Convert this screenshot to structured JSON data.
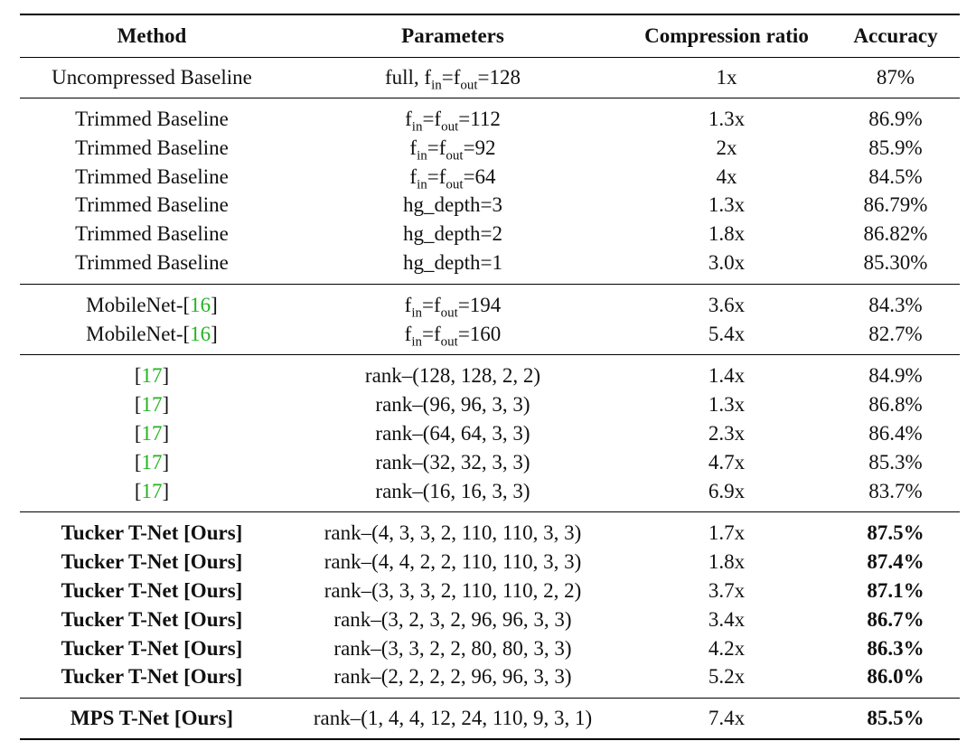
{
  "headers": {
    "method": "Method",
    "parameters": "Parameters",
    "compression": "Compression ratio",
    "accuracy": "Accuracy"
  },
  "uncompressed": {
    "method": "Uncompressed Baseline",
    "param_prefix": "full, f",
    "sub_in": "in",
    "eq": "=f",
    "sub_out": "out",
    "value": "=128",
    "ratio": "1x",
    "accuracy": "87%"
  },
  "trimmed": [
    {
      "method": "Trimmed Baseline",
      "params": "=112",
      "ratio": "1.3x",
      "accuracy": "86.9%"
    },
    {
      "method": "Trimmed Baseline",
      "params": "=92",
      "ratio": "2x",
      "accuracy": "85.9%"
    },
    {
      "method": "Trimmed Baseline",
      "params": "=64",
      "ratio": "4x",
      "accuracy": "84.5%"
    },
    {
      "method": "Trimmed Baseline",
      "params": "hg_depth=3",
      "ratio": "1.3x",
      "accuracy": "86.79%"
    },
    {
      "method": "Trimmed Baseline",
      "params": "hg_depth=2",
      "ratio": "1.8x",
      "accuracy": "86.82%"
    },
    {
      "method": "Trimmed Baseline",
      "params": "hg_depth=1",
      "ratio": "3.0x",
      "accuracy": "85.30%"
    }
  ],
  "f_sym": "f",
  "sub_in": "in",
  "eq_f": "=f",
  "sub_out": "out",
  "mobilenet": [
    {
      "method": "MobileNet-[",
      "cite": "16",
      "close": "]",
      "params": "=194",
      "ratio": "3.6x",
      "accuracy": "84.3%"
    },
    {
      "method": "MobileNet-[",
      "cite": "16",
      "close": "]",
      "params": "=160",
      "ratio": "5.4x",
      "accuracy": "82.7%"
    }
  ],
  "ref17": [
    {
      "open": "[",
      "cite": "17",
      "close": "]",
      "params": "rank–(128, 128, 2, 2)",
      "ratio": "1.4x",
      "accuracy": "84.9%"
    },
    {
      "open": "[",
      "cite": "17",
      "close": "]",
      "params": "rank–(96, 96, 3, 3)",
      "ratio": "1.3x",
      "accuracy": "86.8%"
    },
    {
      "open": "[",
      "cite": "17",
      "close": "]",
      "params": "rank–(64, 64, 3, 3)",
      "ratio": "2.3x",
      "accuracy": "86.4%"
    },
    {
      "open": "[",
      "cite": "17",
      "close": "]",
      "params": "rank–(32, 32, 3, 3)",
      "ratio": "4.7x",
      "accuracy": "85.3%"
    },
    {
      "open": "[",
      "cite": "17",
      "close": "]",
      "params": "rank–(16, 16, 3, 3)",
      "ratio": "6.9x",
      "accuracy": "83.7%"
    }
  ],
  "tucker": [
    {
      "method": "Tucker T-Net [Ours]",
      "params": "rank–(4, 3, 3, 2, 110, 110, 3, 3)",
      "ratio": "1.7x",
      "accuracy": "87.5%"
    },
    {
      "method": "Tucker T-Net [Ours]",
      "params": "rank–(4, 4, 2, 2, 110, 110, 3, 3)",
      "ratio": "1.8x",
      "accuracy": "87.4%"
    },
    {
      "method": "Tucker T-Net [Ours]",
      "params": "rank–(3, 3, 3, 2, 110, 110, 2, 2)",
      "ratio": "3.7x",
      "accuracy": "87.1%"
    },
    {
      "method": "Tucker T-Net [Ours]",
      "params": "rank–(3, 2, 3, 2, 96, 96, 3, 3)",
      "ratio": "3.4x",
      "accuracy": "86.7%"
    },
    {
      "method": "Tucker T-Net [Ours]",
      "params": "rank–(3, 3, 2, 2, 80, 80, 3, 3)",
      "ratio": "4.2x",
      "accuracy": "86.3%"
    },
    {
      "method": "Tucker T-Net [Ours]",
      "params": "rank–(2, 2, 2, 2, 96, 96, 3, 3)",
      "ratio": "5.2x",
      "accuracy": "86.0%"
    }
  ],
  "mps": {
    "method": "MPS T-Net [Ours]",
    "params": "rank–(1, 4, 4, 12, 24, 110, 9, 3, 1)",
    "ratio": "7.4x",
    "accuracy": "85.5%"
  }
}
